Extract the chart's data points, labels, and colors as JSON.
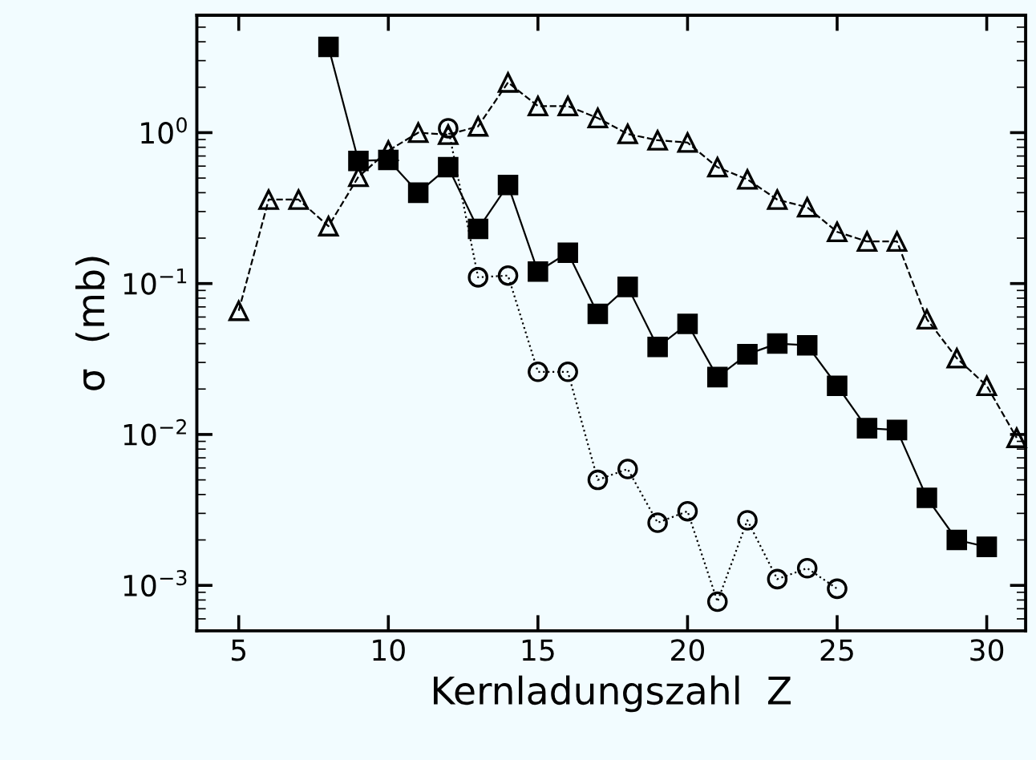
{
  "chart_data": {
    "type": "line",
    "xlabel": "Kernladungszahl  Z",
    "ylabel": "σ  (mb)",
    "log": "y",
    "grid": false,
    "legend": false,
    "xlim": [
      3.6,
      31.3
    ],
    "xticks": [
      5,
      10,
      15,
      20,
      25,
      30
    ],
    "ylim": [
      0.0005,
      6
    ],
    "yticks": [
      {
        "value": 1,
        "label": "10$^{0}$"
      },
      {
        "value": 0.1,
        "label": "10$^{−1}$"
      },
      {
        "value": 0.01,
        "label": "10$^{−2}$"
      },
      {
        "value": 0.001,
        "label": "10$^{−3}$"
      }
    ],
    "series": [
      {
        "color": "#000000",
        "marker": "triangle",
        "line_style": "dashed",
        "x": [
          5,
          6,
          7,
          8,
          9,
          10,
          11,
          12,
          13,
          14,
          15,
          16,
          17,
          18,
          19,
          20,
          21,
          22,
          23,
          24,
          25,
          26,
          27,
          28,
          29,
          30,
          31
        ],
        "values": [
          0.066,
          0.36,
          0.36,
          0.24,
          0.51,
          0.76,
          1.0,
          0.97,
          1.1,
          2.15,
          1.5,
          1.5,
          1.25,
          0.98,
          0.89,
          0.86,
          0.59,
          0.49,
          0.36,
          0.32,
          0.22,
          0.19,
          0.19,
          0.058,
          0.032,
          0.021,
          0.0095
        ]
      },
      {
        "color": "#000000",
        "marker": "square",
        "line_style": "solid",
        "x": [
          8,
          9,
          10,
          11,
          12,
          13,
          14,
          15,
          16,
          17,
          18,
          19,
          20,
          21,
          22,
          23,
          24,
          25,
          26,
          27,
          28,
          29,
          30
        ],
        "values": [
          3.7,
          0.65,
          0.66,
          0.4,
          0.59,
          0.23,
          0.45,
          0.12,
          0.16,
          0.063,
          0.095,
          0.038,
          0.054,
          0.024,
          0.034,
          0.04,
          0.039,
          0.021,
          0.011,
          0.0107,
          0.0038,
          0.002,
          0.0018
        ]
      },
      {
        "color": "#000000",
        "marker": "circle",
        "line_style": "dotted",
        "x": [
          12,
          13,
          14,
          15,
          16,
          17,
          18,
          19,
          20,
          21,
          22,
          23,
          24,
          25
        ],
        "values": [
          1.07,
          0.11,
          0.113,
          0.026,
          0.026,
          0.005,
          0.0059,
          0.0026,
          0.0031,
          0.00078,
          0.0027,
          0.0011,
          0.0013,
          0.00095
        ]
      }
    ]
  }
}
